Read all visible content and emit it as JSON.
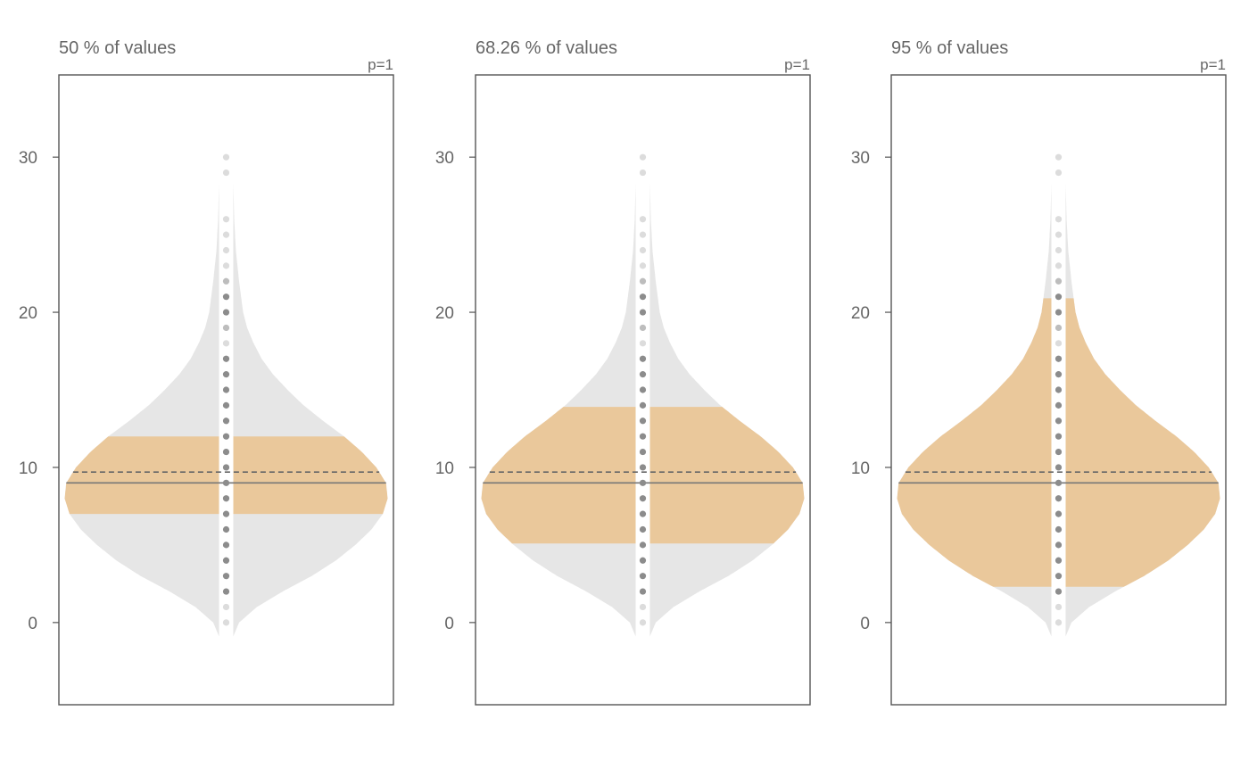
{
  "colors": {
    "violin": "#e6e6e6",
    "highlight": "#eac89b",
    "frame": "#555555",
    "text": "#666666",
    "median_line": "#777777",
    "mean_line": "#666666",
    "strip": "#ffffff",
    "point_dark": "#8c8c8c",
    "point_mid": "#bdbdbd",
    "point_light": "#dcdcdc"
  },
  "chart_data": [
    {
      "type": "violin",
      "title": "50 % of values",
      "annotation": "p=1",
      "ylim": [
        -5.3,
        35.3
      ],
      "yticks": [
        0,
        10,
        20,
        30
      ],
      "ytick_labels": [
        "0",
        "10",
        "20",
        "30"
      ],
      "highlight_coverage_pct": 50,
      "highlight_range": [
        7,
        12
      ],
      "median": 9,
      "mean": 9.7,
      "value_min": 0,
      "value_max": 30,
      "points": [
        0,
        1,
        2,
        3,
        4,
        5,
        6,
        7,
        8,
        9,
        10,
        11,
        12,
        13,
        14,
        15,
        16,
        17,
        18,
        19,
        20,
        21,
        22,
        23,
        24,
        25,
        26,
        29,
        30
      ],
      "point_shade": [
        "light",
        "light",
        "dark",
        "dark",
        "dark",
        "dark",
        "dark",
        "dark",
        "dark",
        "dark",
        "dark",
        "dark",
        "dark",
        "dark",
        "dark",
        "dark",
        "dark",
        "dark",
        "light",
        "mid",
        "dark",
        "dark",
        "mid",
        "light",
        "light",
        "light",
        "light",
        "light",
        "light"
      ]
    },
    {
      "type": "violin",
      "title": "68.26 % of values",
      "annotation": "p=1",
      "ylim": [
        -5.3,
        35.3
      ],
      "yticks": [
        0,
        10,
        20,
        30
      ],
      "ytick_labels": [
        "0",
        "10",
        "20",
        "30"
      ],
      "highlight_coverage_pct": 68.26,
      "highlight_range": [
        5.1,
        13.9
      ],
      "median": 9,
      "mean": 9.7,
      "value_min": 0,
      "value_max": 30,
      "points": [
        0,
        1,
        2,
        3,
        4,
        5,
        6,
        7,
        8,
        9,
        10,
        11,
        12,
        13,
        14,
        15,
        16,
        17,
        18,
        19,
        20,
        21,
        22,
        23,
        24,
        25,
        26,
        29,
        30
      ],
      "point_shade": [
        "light",
        "light",
        "dark",
        "dark",
        "dark",
        "dark",
        "dark",
        "dark",
        "dark",
        "dark",
        "dark",
        "dark",
        "dark",
        "dark",
        "dark",
        "dark",
        "dark",
        "dark",
        "light",
        "mid",
        "dark",
        "dark",
        "mid",
        "light",
        "light",
        "light",
        "light",
        "light",
        "light"
      ]
    },
    {
      "type": "violin",
      "title": "95 % of values",
      "annotation": "p=1",
      "ylim": [
        -5.3,
        35.3
      ],
      "yticks": [
        0,
        10,
        20,
        30
      ],
      "ytick_labels": [
        "0",
        "10",
        "20",
        "30"
      ],
      "highlight_coverage_pct": 95,
      "highlight_range": [
        2.3,
        20.9
      ],
      "median": 9,
      "mean": 9.7,
      "value_min": 0,
      "value_max": 30,
      "points": [
        0,
        1,
        2,
        3,
        4,
        5,
        6,
        7,
        8,
        9,
        10,
        11,
        12,
        13,
        14,
        15,
        16,
        17,
        18,
        19,
        20,
        21,
        22,
        23,
        24,
        25,
        26,
        29,
        30
      ],
      "point_shade": [
        "light",
        "light",
        "dark",
        "dark",
        "dark",
        "dark",
        "dark",
        "dark",
        "dark",
        "dark",
        "dark",
        "dark",
        "dark",
        "dark",
        "dark",
        "dark",
        "dark",
        "dark",
        "light",
        "mid",
        "dark",
        "dark",
        "mid",
        "light",
        "light",
        "light",
        "light",
        "light",
        "light"
      ]
    }
  ]
}
